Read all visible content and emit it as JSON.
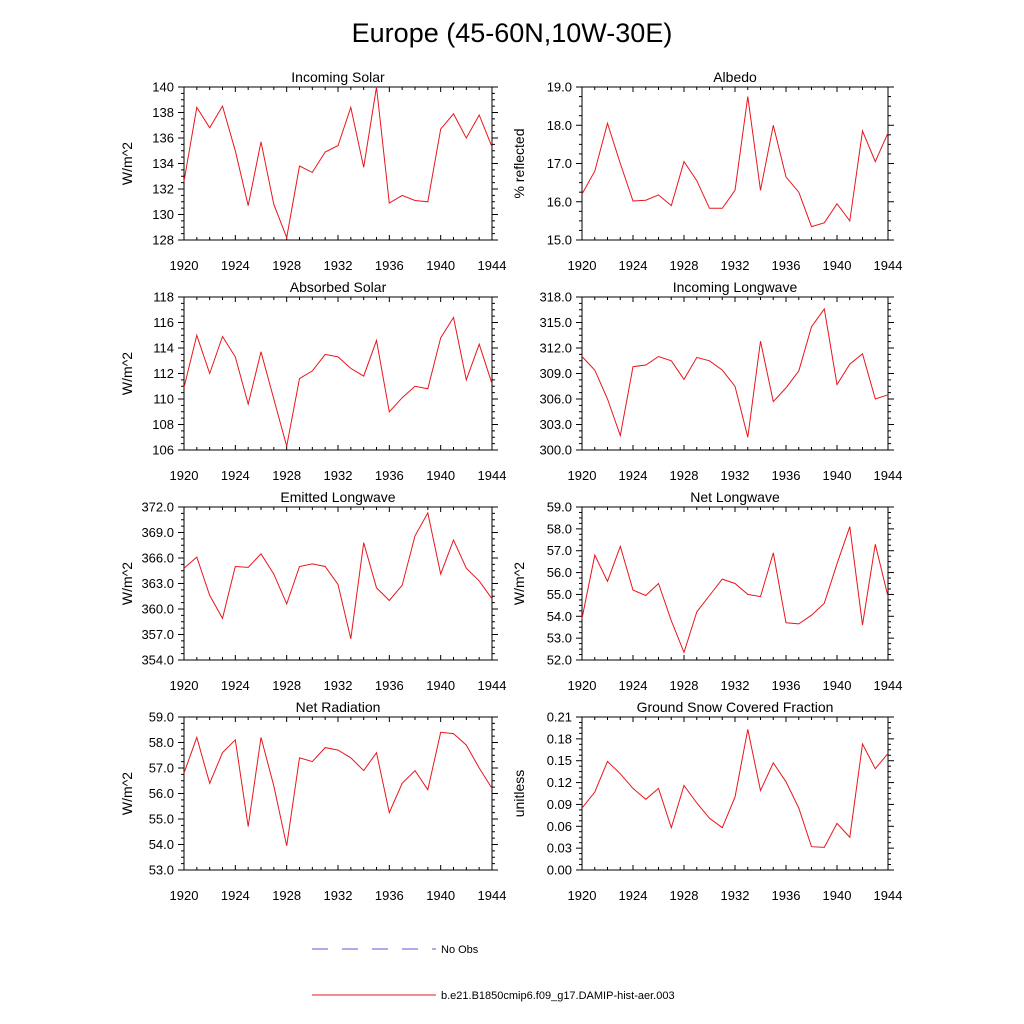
{
  "title": "Europe (45-60N,10W-30E)",
  "legend": [
    {
      "label": "No Obs",
      "color": "#5a5ad0",
      "dash": true
    },
    {
      "label": "b.e21.B1850cmip6.f09_g17.DAMIP-hist-aer.003",
      "color": "#e8161c",
      "dash": false
    }
  ],
  "chart_data": [
    {
      "type": "line",
      "title": "Incoming Solar",
      "ylabel": "W/m^2",
      "x": [
        1920,
        1921,
        1922,
        1923,
        1924,
        1925,
        1926,
        1927,
        1928,
        1929,
        1930,
        1931,
        1932,
        1933,
        1934,
        1935,
        1936,
        1937,
        1938,
        1939,
        1940,
        1941,
        1942,
        1943,
        1944
      ],
      "series": [
        {
          "values": [
            132.6,
            138.4,
            136.8,
            138.5,
            135.0,
            130.7,
            135.7,
            130.8,
            128.2,
            133.8,
            133.3,
            134.9,
            135.4,
            138.4,
            133.7,
            140.0,
            130.9,
            131.5,
            131.1,
            131.0,
            136.7,
            137.9,
            136.0,
            137.8,
            135.3
          ]
        }
      ],
      "xlim": [
        1920,
        1944
      ],
      "ylim": [
        128,
        140
      ],
      "xticks": [
        1920,
        1924,
        1928,
        1932,
        1936,
        1940,
        1944
      ],
      "xticklabels": [
        "1920",
        "1924",
        "1928",
        "1932",
        "1936",
        "1940",
        "1944"
      ],
      "yticks": [
        128,
        130,
        132,
        134,
        136,
        138,
        140
      ],
      "yticklabels": [
        "128",
        "130",
        "132",
        "134",
        "136",
        "138",
        "140"
      ]
    },
    {
      "type": "line",
      "title": "Albedo",
      "ylabel": "% reflected",
      "x": [
        1920,
        1921,
        1922,
        1923,
        1924,
        1925,
        1926,
        1927,
        1928,
        1929,
        1930,
        1931,
        1932,
        1933,
        1934,
        1935,
        1936,
        1937,
        1938,
        1939,
        1940,
        1941,
        1942,
        1943,
        1944
      ],
      "series": [
        {
          "values": [
            16.2,
            16.8,
            18.05,
            17.0,
            16.02,
            16.04,
            16.18,
            15.9,
            17.05,
            16.55,
            15.83,
            15.83,
            16.3,
            18.75,
            16.3,
            18.0,
            16.65,
            16.25,
            15.35,
            15.45,
            15.95,
            15.5,
            17.85,
            17.05,
            17.8
          ]
        }
      ],
      "xlim": [
        1920,
        1944
      ],
      "ylim": [
        15.0,
        19.0
      ],
      "xticks": [
        1920,
        1924,
        1928,
        1932,
        1936,
        1940,
        1944
      ],
      "xticklabels": [
        "1920",
        "1924",
        "1928",
        "1932",
        "1936",
        "1940",
        "1944"
      ],
      "yticks": [
        15,
        16,
        17,
        18,
        19
      ],
      "yticklabels": [
        "15.0",
        "16.0",
        "17.0",
        "18.0",
        "19.0"
      ]
    },
    {
      "type": "line",
      "title": "Absorbed Solar",
      "ylabel": "W/m^2",
      "x": [
        1920,
        1921,
        1922,
        1923,
        1924,
        1925,
        1926,
        1927,
        1928,
        1929,
        1930,
        1931,
        1932,
        1933,
        1934,
        1935,
        1936,
        1937,
        1938,
        1939,
        1940,
        1941,
        1942,
        1943,
        1944
      ],
      "series": [
        {
          "values": [
            110.9,
            115.0,
            112.0,
            114.9,
            113.3,
            109.6,
            113.7,
            110.0,
            106.3,
            111.6,
            112.2,
            113.5,
            113.3,
            112.4,
            111.8,
            114.6,
            109.0,
            110.1,
            111.0,
            110.8,
            114.8,
            116.4,
            111.5,
            114.3,
            111.2
          ]
        }
      ],
      "xlim": [
        1920,
        1944
      ],
      "ylim": [
        106,
        118
      ],
      "xticks": [
        1920,
        1924,
        1928,
        1932,
        1936,
        1940,
        1944
      ],
      "xticklabels": [
        "1920",
        "1924",
        "1928",
        "1932",
        "1936",
        "1940",
        "1944"
      ],
      "yticks": [
        106,
        108,
        110,
        112,
        114,
        116,
        118
      ],
      "yticklabels": [
        "106",
        "108",
        "110",
        "112",
        "114",
        "116",
        "118"
      ]
    },
    {
      "type": "line",
      "title": "Incoming Longwave",
      "ylabel": "",
      "x": [
        1920,
        1921,
        1922,
        1923,
        1924,
        1925,
        1926,
        1927,
        1928,
        1929,
        1930,
        1931,
        1932,
        1933,
        1934,
        1935,
        1936,
        1937,
        1938,
        1939,
        1940,
        1941,
        1942,
        1943,
        1944
      ],
      "series": [
        {
          "values": [
            311.0,
            309.4,
            306.0,
            301.7,
            309.8,
            310.0,
            311.0,
            310.5,
            308.3,
            310.9,
            310.5,
            309.4,
            307.5,
            301.5,
            312.8,
            305.7,
            307.3,
            309.3,
            314.5,
            316.6,
            307.7,
            310.1,
            311.3,
            306.0,
            306.5
          ]
        }
      ],
      "xlim": [
        1920,
        1944
      ],
      "ylim": [
        300,
        318
      ],
      "xticks": [
        1920,
        1924,
        1928,
        1932,
        1936,
        1940,
        1944
      ],
      "xticklabels": [
        "1920",
        "1924",
        "1928",
        "1932",
        "1936",
        "1940",
        "1944"
      ],
      "yticks": [
        300,
        303,
        306,
        309,
        312,
        315,
        318
      ],
      "yticklabels": [
        "300.0",
        "303.0",
        "306.0",
        "309.0",
        "312.0",
        "315.0",
        "318.0"
      ]
    },
    {
      "type": "line",
      "title": "Emitted Longwave",
      "ylabel": "W/m^2",
      "x": [
        1920,
        1921,
        1922,
        1923,
        1924,
        1925,
        1926,
        1927,
        1928,
        1929,
        1930,
        1931,
        1932,
        1933,
        1934,
        1935,
        1936,
        1937,
        1938,
        1939,
        1940,
        1941,
        1942,
        1943,
        1944
      ],
      "series": [
        {
          "values": [
            364.8,
            366.1,
            361.6,
            358.9,
            365.0,
            364.9,
            366.5,
            364.1,
            360.6,
            365.0,
            365.3,
            365.0,
            362.9,
            356.5,
            367.8,
            362.5,
            361.0,
            362.8,
            368.6,
            371.3,
            364.1,
            368.1,
            364.8,
            363.3,
            361.2
          ]
        }
      ],
      "xlim": [
        1920,
        1944
      ],
      "ylim": [
        354,
        372
      ],
      "xticks": [
        1920,
        1924,
        1928,
        1932,
        1936,
        1940,
        1944
      ],
      "xticklabels": [
        "1920",
        "1924",
        "1928",
        "1932",
        "1936",
        "1940",
        "1944"
      ],
      "yticks": [
        354,
        357,
        360,
        363,
        366,
        369,
        372
      ],
      "yticklabels": [
        "354.0",
        "357.0",
        "360.0",
        "363.0",
        "366.0",
        "369.0",
        "372.0"
      ]
    },
    {
      "type": "line",
      "title": "Net Longwave",
      "ylabel": "W/m^2",
      "x": [
        1920,
        1921,
        1922,
        1923,
        1924,
        1925,
        1926,
        1927,
        1928,
        1929,
        1930,
        1931,
        1932,
        1933,
        1934,
        1935,
        1936,
        1937,
        1938,
        1939,
        1940,
        1941,
        1942,
        1943,
        1944
      ],
      "series": [
        {
          "values": [
            53.9,
            56.8,
            55.6,
            57.2,
            55.2,
            54.95,
            55.5,
            53.8,
            52.35,
            54.2,
            54.95,
            55.7,
            55.5,
            55.0,
            54.9,
            56.9,
            53.7,
            53.65,
            54.05,
            54.6,
            56.4,
            58.1,
            53.6,
            57.3,
            54.9
          ]
        }
      ],
      "xlim": [
        1920,
        1944
      ],
      "ylim": [
        52,
        59
      ],
      "xticks": [
        1920,
        1924,
        1928,
        1932,
        1936,
        1940,
        1944
      ],
      "xticklabels": [
        "1920",
        "1924",
        "1928",
        "1932",
        "1936",
        "1940",
        "1944"
      ],
      "yticks": [
        52,
        53,
        54,
        55,
        56,
        57,
        58,
        59
      ],
      "yticklabels": [
        "52.0",
        "53.0",
        "54.0",
        "55.0",
        "56.0",
        "57.0",
        "58.0",
        "59.0"
      ]
    },
    {
      "type": "line",
      "title": "Net Radiation",
      "ylabel": "W/m^2",
      "x": [
        1920,
        1921,
        1922,
        1923,
        1924,
        1925,
        1926,
        1927,
        1928,
        1929,
        1930,
        1931,
        1932,
        1933,
        1934,
        1935,
        1936,
        1937,
        1938,
        1939,
        1940,
        1941,
        1942,
        1943,
        1944
      ],
      "series": [
        {
          "values": [
            56.8,
            58.2,
            56.4,
            57.6,
            58.1,
            54.7,
            58.2,
            56.3,
            53.95,
            57.4,
            57.25,
            57.8,
            57.7,
            57.4,
            56.9,
            57.6,
            55.25,
            56.4,
            56.9,
            56.15,
            58.4,
            58.35,
            57.9,
            57.0,
            56.2
          ]
        }
      ],
      "xlim": [
        1920,
        1944
      ],
      "ylim": [
        53,
        59
      ],
      "xticks": [
        1920,
        1924,
        1928,
        1932,
        1936,
        1940,
        1944
      ],
      "xticklabels": [
        "1920",
        "1924",
        "1928",
        "1932",
        "1936",
        "1940",
        "1944"
      ],
      "yticks": [
        53,
        54,
        55,
        56,
        57,
        58,
        59
      ],
      "yticklabels": [
        "53.0",
        "54.0",
        "55.0",
        "56.0",
        "57.0",
        "58.0",
        "59.0"
      ]
    },
    {
      "type": "line",
      "title": "Ground Snow Covered Fraction",
      "ylabel": "unitless",
      "x": [
        1920,
        1921,
        1922,
        1923,
        1924,
        1925,
        1926,
        1927,
        1928,
        1929,
        1930,
        1931,
        1932,
        1933,
        1934,
        1935,
        1936,
        1937,
        1938,
        1939,
        1940,
        1941,
        1942,
        1943,
        1944
      ],
      "series": [
        {
          "values": [
            0.085,
            0.107,
            0.149,
            0.132,
            0.112,
            0.097,
            0.112,
            0.058,
            0.116,
            0.092,
            0.071,
            0.058,
            0.1,
            0.193,
            0.109,
            0.147,
            0.121,
            0.085,
            0.032,
            0.031,
            0.064,
            0.045,
            0.173,
            0.139,
            0.16
          ]
        }
      ],
      "xlim": [
        1920,
        1944
      ],
      "ylim": [
        0,
        0.21
      ],
      "xticks": [
        1920,
        1924,
        1928,
        1932,
        1936,
        1940,
        1944
      ],
      "xticklabels": [
        "1920",
        "1924",
        "1928",
        "1932",
        "1936",
        "1940",
        "1944"
      ],
      "yticks": [
        0,
        0.03,
        0.06,
        0.09,
        0.12,
        0.15,
        0.18,
        0.21
      ],
      "yticklabels": [
        "0.00",
        "0.03",
        "0.06",
        "0.09",
        "0.12",
        "0.15",
        "0.18",
        "0.21"
      ]
    }
  ]
}
